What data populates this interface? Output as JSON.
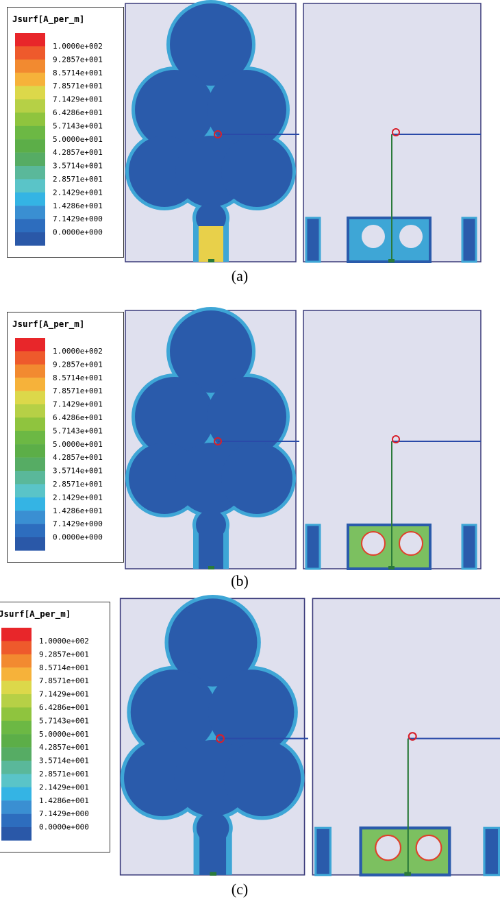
{
  "figure": {
    "panels": [
      {
        "legend": {
          "title": "Jsurf[A_per_m]",
          "labels": [
            "1.0000e+002",
            "9.2857e+001",
            "8.5714e+001",
            "7.8571e+001",
            "7.1429e+001",
            "6.4286e+001",
            "5.7143e+001",
            "5.0000e+001",
            "4.2857e+001",
            "3.5714e+001",
            "2.8571e+001",
            "2.1429e+001",
            "1.4286e+001",
            "7.1429e+000",
            "0.0000e+000"
          ]
        },
        "caption": "(a)"
      },
      {
        "legend": {
          "title": "Jsurf[A_per_m]",
          "labels": [
            "1.0000e+002",
            "9.2857e+001",
            "8.5714e+001",
            "7.8571e+001",
            "7.1429e+001",
            "6.4286e+001",
            "5.7143e+001",
            "5.0000e+001",
            "4.2857e+001",
            "3.5714e+001",
            "2.8571e+001",
            "2.1429e+001",
            "1.4286e+001",
            "7.1429e+000",
            "0.0000e+000"
          ]
        },
        "caption": "(b)"
      },
      {
        "legend": {
          "title": "Jsurf[A_per_m]",
          "labels": [
            "1.0000e+002",
            "9.2857e+001",
            "8.5714e+001",
            "7.8571e+001",
            "7.1429e+001",
            "6.4286e+001",
            "5.7143e+001",
            "5.0000e+001",
            "4.2857e+001",
            "3.5714e+001",
            "2.8571e+001",
            "2.1429e+001",
            "1.4286e+001",
            "7.1429e+000",
            "0.0000e+000"
          ]
        },
        "caption": "(c)"
      }
    ]
  }
}
